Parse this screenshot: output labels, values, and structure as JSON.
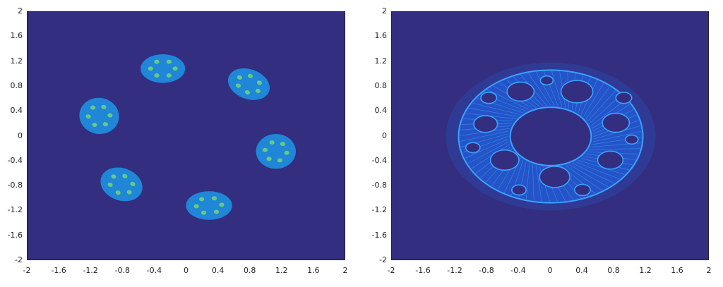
{
  "theme": {
    "background": "#332e80",
    "blob_fill": "#1f86d8",
    "blob_dot": "#6fd17a",
    "fractal_line": "#3aa2ff",
    "fractal_fill": "#2454c8",
    "fractal_halo": "#2f3a94",
    "axis_color": "#222222"
  },
  "chart_data": [
    {
      "type": "heatmap",
      "title": "",
      "xlabel": "",
      "ylabel": "",
      "xlim": [
        -2,
        2
      ],
      "ylim": [
        -2,
        2
      ],
      "x_ticks": [
        "-2",
        "-1.6",
        "-1.2",
        "-0.8",
        "-0.4",
        "0",
        "0.4",
        "0.8",
        "1.2",
        "1.6",
        "2"
      ],
      "y_ticks": [
        "2",
        "1.6",
        "1.2",
        "0.8",
        "0.4",
        "0",
        "-0.4",
        "-0.8",
        "-1.2",
        "-1.6",
        "-2"
      ],
      "grid": false,
      "regions": [
        {
          "cx": -0.3,
          "cy": 1.09,
          "rx": 0.28,
          "ry": 0.23,
          "angle": 0
        },
        {
          "cx": 0.78,
          "cy": 0.84,
          "rx": 0.27,
          "ry": 0.24,
          "angle": 20
        },
        {
          "cx": -1.1,
          "cy": 0.33,
          "rx": 0.25,
          "ry": 0.29,
          "angle": 10
        },
        {
          "cx": 1.12,
          "cy": -0.24,
          "rx": 0.25,
          "ry": 0.28,
          "angle": 0
        },
        {
          "cx": -0.82,
          "cy": -0.77,
          "rx": 0.27,
          "ry": 0.26,
          "angle": 20
        },
        {
          "cx": 0.28,
          "cy": -1.11,
          "rx": 0.29,
          "ry": 0.23,
          "angle": 0
        }
      ]
    },
    {
      "type": "heatmap",
      "title": "",
      "xlabel": "",
      "ylabel": "",
      "xlim": [
        -2,
        2
      ],
      "ylim": [
        -2,
        2
      ],
      "x_ticks": [
        "-2",
        "-1.6",
        "-1.2",
        "-0.8",
        "-0.4",
        "0",
        "0.4",
        "0.8",
        "1.2",
        "1.6",
        "2"
      ],
      "y_ticks": [
        "2",
        "1.6",
        "1.2",
        "0.8",
        "0.4",
        "0",
        "-0.4",
        "-0.8",
        "-1.2",
        "-1.6",
        "-2"
      ],
      "grid": false,
      "outer_radius": 1.16,
      "inner_radius": 0.51,
      "halo_radius": 1.32,
      "holes": [
        {
          "cx": -0.38,
          "cy": 0.72,
          "r": 0.17
        },
        {
          "cx": 0.33,
          "cy": 0.72,
          "r": 0.2
        },
        {
          "cx": 0.82,
          "cy": 0.22,
          "r": 0.17
        },
        {
          "cx": 0.75,
          "cy": -0.38,
          "r": 0.16
        },
        {
          "cx": 0.05,
          "cy": -0.65,
          "r": 0.19
        },
        {
          "cx": -0.58,
          "cy": -0.38,
          "r": 0.18
        },
        {
          "cx": -0.82,
          "cy": 0.2,
          "r": 0.15
        },
        {
          "cx": -0.78,
          "cy": 0.62,
          "r": 0.1
        },
        {
          "cx": 0.92,
          "cy": 0.62,
          "r": 0.1
        },
        {
          "cx": 0.4,
          "cy": -0.86,
          "r": 0.1
        },
        {
          "cx": -0.4,
          "cy": -0.86,
          "r": 0.09
        },
        {
          "cx": -0.98,
          "cy": -0.18,
          "r": 0.09
        },
        {
          "cx": 1.02,
          "cy": -0.05,
          "r": 0.08
        },
        {
          "cx": -0.05,
          "cy": 0.9,
          "r": 0.08
        }
      ]
    }
  ]
}
